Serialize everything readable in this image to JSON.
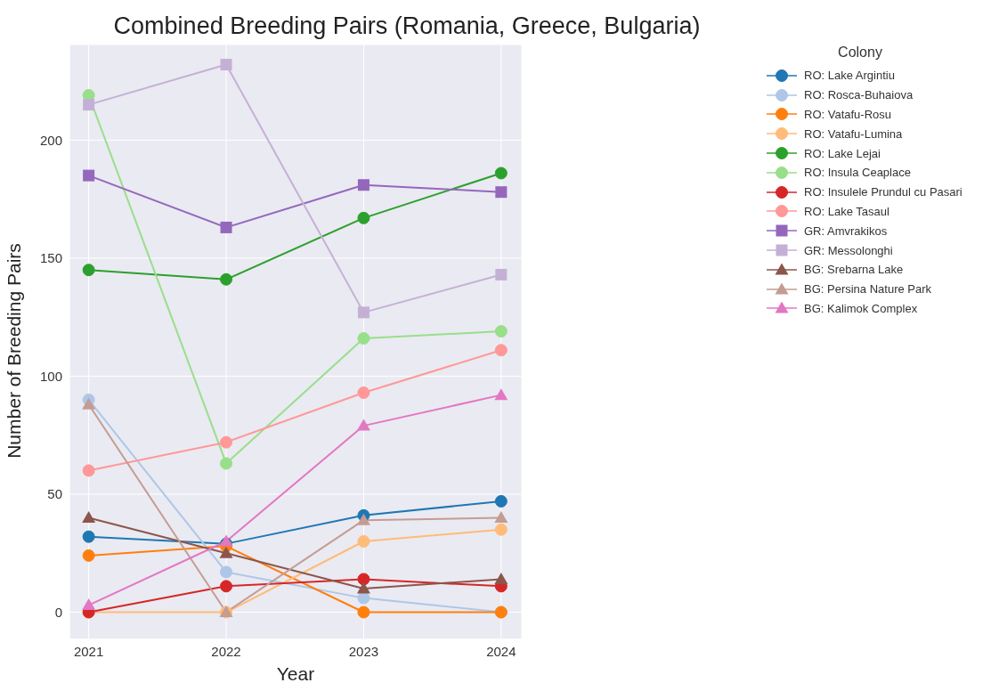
{
  "chart_data": {
    "type": "line",
    "title": "Combined Breeding Pairs (Romania, Greece, Bulgaria)",
    "xlabel": "Year",
    "ylabel": "Number of Breeding Pairs",
    "legend_title": "Colony",
    "x": [
      2021,
      2022,
      2023,
      2024
    ],
    "xlim": [
      2020.86,
      2024.15
    ],
    "xticks": [
      2021,
      2022,
      2023,
      2024
    ],
    "ylim": [
      -11.5,
      240.5
    ],
    "yticks": [
      0,
      50,
      100,
      150,
      200
    ],
    "grid": true,
    "legend": "right",
    "line_style": "solid",
    "series": [
      {
        "name": "RO: Lake Argintiu",
        "color": "#1f77b4",
        "marker": "circle",
        "values": [
          32,
          29,
          41,
          47
        ]
      },
      {
        "name": "RO: Rosca-Buhaiova",
        "color": "#aec7e8",
        "marker": "circle",
        "values": [
          90,
          17,
          6,
          0
        ]
      },
      {
        "name": "RO: Vatafu-Rosu",
        "color": "#ff7f0e",
        "marker": "circle",
        "values": [
          24,
          28,
          0,
          0
        ]
      },
      {
        "name": "RO: Vatafu-Lumina",
        "color": "#ffbb78",
        "marker": "circle",
        "values": [
          0,
          0,
          30,
          35
        ]
      },
      {
        "name": "RO: Lake Lejai",
        "color": "#2ca02c",
        "marker": "circle",
        "values": [
          145,
          141,
          167,
          186
        ]
      },
      {
        "name": "RO: Insula Ceaplace",
        "color": "#98df8a",
        "marker": "circle",
        "values": [
          219,
          63,
          116,
          119
        ]
      },
      {
        "name": "RO: Insulele Prundul cu Pasari",
        "color": "#d62728",
        "marker": "circle",
        "values": [
          0,
          11,
          14,
          11
        ]
      },
      {
        "name": "RO: Lake Tasaul",
        "color": "#ff9896",
        "marker": "circle",
        "values": [
          60,
          72,
          93,
          111
        ]
      },
      {
        "name": "GR: Amvrakikos",
        "color": "#9467bd",
        "marker": "square",
        "values": [
          185,
          163,
          181,
          178
        ]
      },
      {
        "name": "GR: Messolonghi",
        "color": "#c5b0d5",
        "marker": "square",
        "values": [
          215,
          232,
          127,
          143
        ]
      },
      {
        "name": "BG: Srebarna Lake",
        "color": "#8c564b",
        "marker": "triangle",
        "values": [
          40,
          25,
          10,
          14
        ]
      },
      {
        "name": "BG: Persina Nature Park",
        "color": "#c49c94",
        "marker": "triangle",
        "values": [
          88,
          0,
          39,
          40
        ]
      },
      {
        "name": "BG: Kalimok Complex",
        "color": "#e377c2",
        "marker": "triangle",
        "values": [
          3,
          30,
          79,
          92
        ]
      }
    ]
  }
}
